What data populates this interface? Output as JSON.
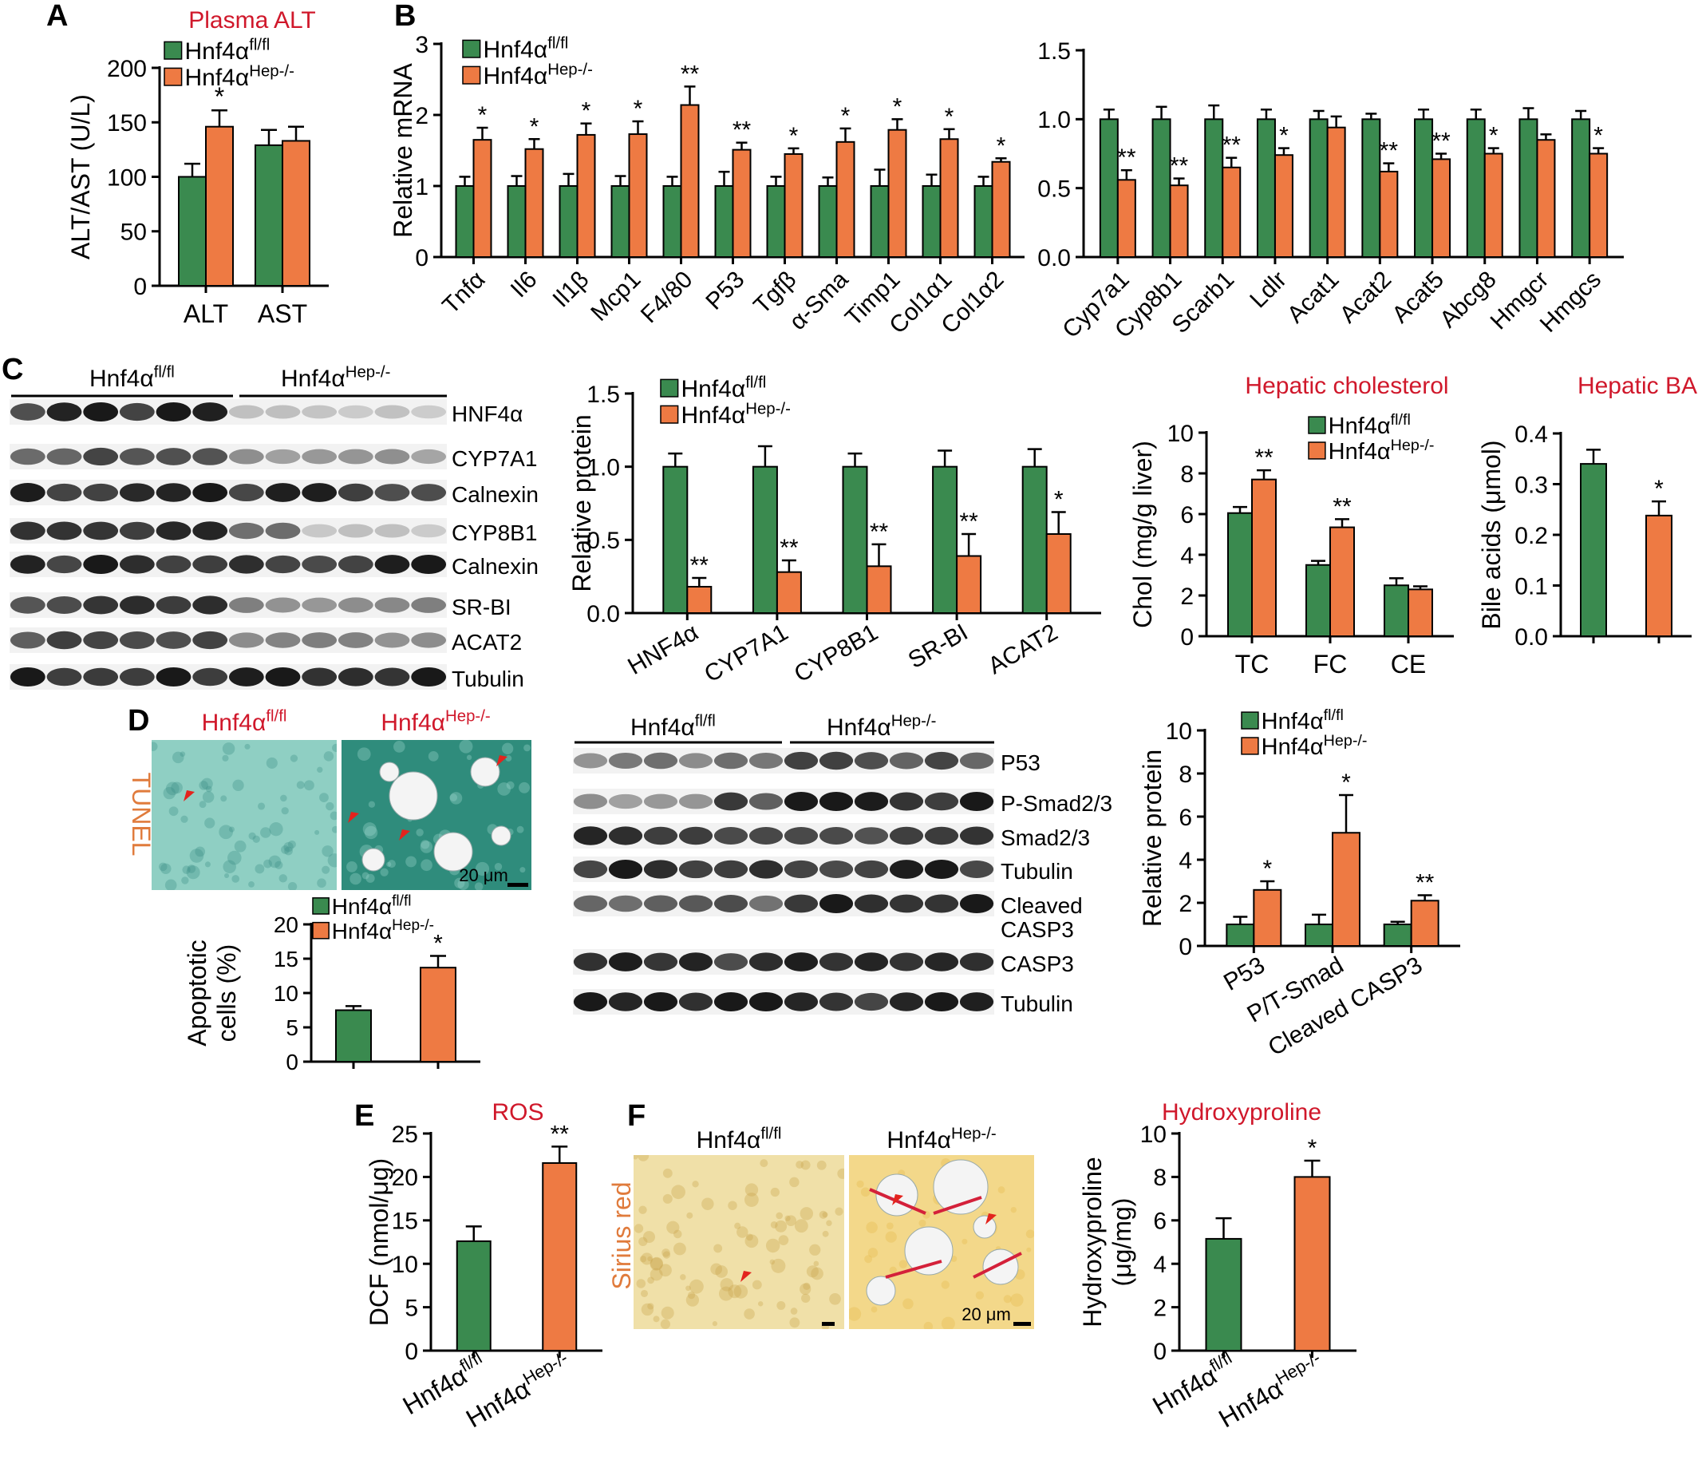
{
  "colors": {
    "flfl": "#3a8a4f",
    "hep": "#ee7a43",
    "title_red": "#d0182b",
    "stain_orange": "#e07b3c"
  },
  "panel_letters": [
    "A",
    "B",
    "C",
    "D",
    "E",
    "F"
  ],
  "groups": {
    "flfl_main": "Hnf4α",
    "flfl_sup": "fl/fl",
    "hep_main": "Hnf4α",
    "hep_sup": "Hep-/-"
  },
  "western_c": {
    "bands": [
      "HNF4α",
      "CYP7A1",
      "Calnexin",
      "CYP8B1",
      "Calnexin",
      "SR-BI",
      "ACAT2",
      "Tubulin"
    ]
  },
  "western_d": {
    "bands": [
      "P53",
      "P-Smad2/3",
      "Smad2/3",
      "Tubulin",
      "Cleaved",
      "CASP3",
      "CASP3",
      "Tubulin"
    ]
  },
  "micro_d": {
    "flfl_title": "Hnf4α",
    "hep_title": "Hnf4α",
    "stain": "TUNEL",
    "scale": "20 μm"
  },
  "micro_f": {
    "flfl_title": "Hnf4α",
    "hep_title": "Hnf4α",
    "stain": "Sirius red",
    "scale": "20 μm"
  },
  "chart_data": [
    {
      "id": "A",
      "type": "bar",
      "title": "Plasma ALT",
      "ylabel": "ALT/AST (U/L)",
      "xlabel": "",
      "ylim": [
        0,
        200
      ],
      "yticks": [
        0,
        50,
        100,
        150,
        200
      ],
      "categories": [
        "ALT",
        "AST"
      ],
      "series": [
        {
          "name": "Hnf4α fl/fl",
          "values": [
            100,
            129
          ],
          "errors": [
            12,
            14
          ]
        },
        {
          "name": "Hnf4α Hep-/-",
          "values": [
            146,
            133
          ],
          "errors": [
            15,
            13
          ]
        }
      ],
      "significance": [
        "*",
        ""
      ],
      "legend": "top-left"
    },
    {
      "id": "B1",
      "type": "bar",
      "title": "",
      "ylabel": "Relative mRNA",
      "xlabel": "",
      "ylim": [
        0,
        3
      ],
      "yticks": [
        0,
        1,
        2,
        3
      ],
      "categories": [
        "Tnfα",
        "Il6",
        "Il1β",
        "Mcp1",
        "F4/80",
        "P53",
        "Tgfβ",
        "α-Sma",
        "Timp1",
        "Col1α1",
        "Col1α2"
      ],
      "series": [
        {
          "name": "Hnf4α fl/fl",
          "values": [
            1,
            1,
            1,
            1,
            1,
            1,
            1,
            1,
            1,
            1,
            1
          ],
          "errors": [
            0.13,
            0.14,
            0.17,
            0.14,
            0.13,
            0.2,
            0.13,
            0.12,
            0.23,
            0.16,
            0.13
          ]
        },
        {
          "name": "Hnf4α Hep-/-",
          "values": [
            1.65,
            1.52,
            1.72,
            1.73,
            2.14,
            1.51,
            1.45,
            1.62,
            1.79,
            1.66,
            1.34
          ]
        },
        {
          "name": "Hnf4α Hep-/- err",
          "values": [
            0.17,
            0.14,
            0.16,
            0.18,
            0.26,
            0.1,
            0.08,
            0.19,
            0.15,
            0.14,
            0.05
          ]
        }
      ],
      "significance": [
        "*",
        "*",
        "*",
        "*",
        "**",
        "**",
        "*",
        "*",
        "*",
        "*",
        "*"
      ],
      "legend": "top-left"
    },
    {
      "id": "B2",
      "type": "bar",
      "title": "",
      "ylabel": "",
      "xlabel": "",
      "ylim": [
        0,
        1.5
      ],
      "yticks": [
        0.0,
        0.5,
        1.0,
        1.5
      ],
      "categories": [
        "Cyp7a1",
        "Cyp8b1",
        "Scarb1",
        "Ldlr",
        "Acat1",
        "Acat2",
        "Acat5",
        "Abcg8",
        "Hmgcr",
        "Hmgcs"
      ],
      "series": [
        {
          "name": "Hnf4α fl/fl",
          "values": [
            1,
            1,
            1,
            1,
            1,
            1,
            1,
            1,
            1,
            1
          ],
          "errors": [
            0.07,
            0.09,
            0.1,
            0.07,
            0.06,
            0.04,
            0.07,
            0.07,
            0.08,
            0.06
          ]
        },
        {
          "name": "Hnf4α Hep-/-",
          "values": [
            0.56,
            0.52,
            0.65,
            0.74,
            0.94,
            0.62,
            0.71,
            0.75,
            0.85,
            0.75
          ],
          "errors": [
            0.07,
            0.05,
            0.07,
            0.05,
            0.08,
            0.06,
            0.04,
            0.04,
            0.04,
            0.04
          ]
        }
      ],
      "significance": [
        "**",
        "**",
        "**",
        "*",
        "",
        "**",
        "**",
        "*",
        "",
        "*"
      ],
      "legend": "none"
    },
    {
      "id": "C1",
      "type": "bar",
      "title": "",
      "ylabel": "Relative protein",
      "xlabel": "",
      "ylim": [
        0,
        1.5
      ],
      "yticks": [
        0.0,
        0.5,
        1.0,
        1.5
      ],
      "categories": [
        "HNF4α",
        "CYP7A1",
        "CYP8B1",
        "SR-BI",
        "ACAT2"
      ],
      "series": [
        {
          "name": "Hnf4α fl/fl",
          "values": [
            1,
            1,
            1,
            1,
            1
          ],
          "errors": [
            0.09,
            0.14,
            0.09,
            0.11,
            0.12
          ]
        },
        {
          "name": "Hnf4α Hep-/-",
          "values": [
            0.18,
            0.28,
            0.32,
            0.39,
            0.54
          ],
          "errors": [
            0.06,
            0.08,
            0.15,
            0.15,
            0.15
          ]
        }
      ],
      "significance": [
        "**",
        "**",
        "**",
        "**",
        "*"
      ],
      "legend": "top-left"
    },
    {
      "id": "C2",
      "type": "bar",
      "title": "Hepatic cholesterol",
      "ylabel": "Chol (mg/g liver)",
      "xlabel": "",
      "ylim": [
        0,
        10
      ],
      "yticks": [
        0,
        2,
        4,
        6,
        8,
        10
      ],
      "categories": [
        "TC",
        "FC",
        "CE"
      ],
      "series": [
        {
          "name": "Hnf4α fl/fl",
          "values": [
            6.05,
            3.5,
            2.5
          ],
          "errors": [
            0.3,
            0.2,
            0.35
          ]
        },
        {
          "name": "Hnf4α Hep-/-",
          "values": [
            7.7,
            5.35,
            2.3
          ],
          "errors": [
            0.45,
            0.4,
            0.15
          ]
        }
      ],
      "significance": [
        "**",
        "**",
        ""
      ],
      "legend": "top-right"
    },
    {
      "id": "C3",
      "type": "bar",
      "title": "Hepatic BA",
      "ylabel": "Bile acids (μmol)",
      "xlabel": "",
      "ylim": [
        0,
        0.4
      ],
      "yticks": [
        0.0,
        0.1,
        0.2,
        0.3,
        0.4
      ],
      "categories": [
        "Hnf4α fl/fl",
        "Hnf4α Hep-/-"
      ],
      "values": [
        0.34,
        0.238
      ],
      "errors": [
        0.028,
        0.028
      ],
      "significance": [
        "",
        "*"
      ],
      "legend": "none",
      "show_xlabels": false
    },
    {
      "id": "D1",
      "type": "bar",
      "title": "",
      "ylabel": "Apoptotic cells (%)",
      "xlabel": "",
      "ylim": [
        0,
        20
      ],
      "yticks": [
        0,
        5,
        10,
        15,
        20
      ],
      "categories": [
        "Hnf4α fl/fl",
        "Hnf4α Hep-/-"
      ],
      "values": [
        7.5,
        13.7
      ],
      "errors": [
        0.6,
        1.7
      ],
      "significance": [
        "",
        "*"
      ],
      "legend": "top-left",
      "show_xlabels": false
    },
    {
      "id": "D2",
      "type": "bar",
      "title": "",
      "ylabel": "Relative protein",
      "xlabel": "",
      "ylim": [
        0,
        10
      ],
      "yticks": [
        0,
        2,
        4,
        6,
        8,
        10
      ],
      "categories": [
        "P53",
        "P/T-Smad",
        "Cleaved CASP3"
      ],
      "series": [
        {
          "name": "Hnf4α fl/fl",
          "values": [
            1,
            1,
            1
          ],
          "errors": [
            0.35,
            0.45,
            0.12
          ]
        },
        {
          "name": "Hnf4α Hep-/-",
          "values": [
            2.6,
            5.25,
            2.1
          ],
          "errors": [
            0.4,
            1.75,
            0.25
          ]
        }
      ],
      "significance": [
        "*",
        "*",
        "**"
      ],
      "legend": "top-left"
    },
    {
      "id": "E",
      "type": "bar",
      "title": "ROS",
      "ylabel": "DCF (nmol/μg)",
      "xlabel": "",
      "ylim": [
        0,
        25
      ],
      "yticks": [
        0,
        5,
        10,
        15,
        20,
        25
      ],
      "categories": [
        "Hnf4α fl/fl",
        "Hnf4α Hep-/-"
      ],
      "values": [
        12.6,
        21.6
      ],
      "errors": [
        1.7,
        1.9
      ],
      "significance": [
        "",
        "**"
      ],
      "legend": "none"
    },
    {
      "id": "F",
      "type": "bar",
      "title": "Hydroxyproline",
      "ylabel": "Hydroxyproline (μg/mg)",
      "xlabel": "",
      "ylim": [
        0,
        10
      ],
      "yticks": [
        0,
        2,
        4,
        6,
        8,
        10
      ],
      "categories": [
        "Hnf4α fl/fl",
        "Hnf4α Hep-/-"
      ],
      "values": [
        5.15,
        8.0
      ],
      "errors": [
        0.95,
        0.75
      ],
      "significance": [
        "",
        "*"
      ],
      "legend": "none"
    }
  ]
}
